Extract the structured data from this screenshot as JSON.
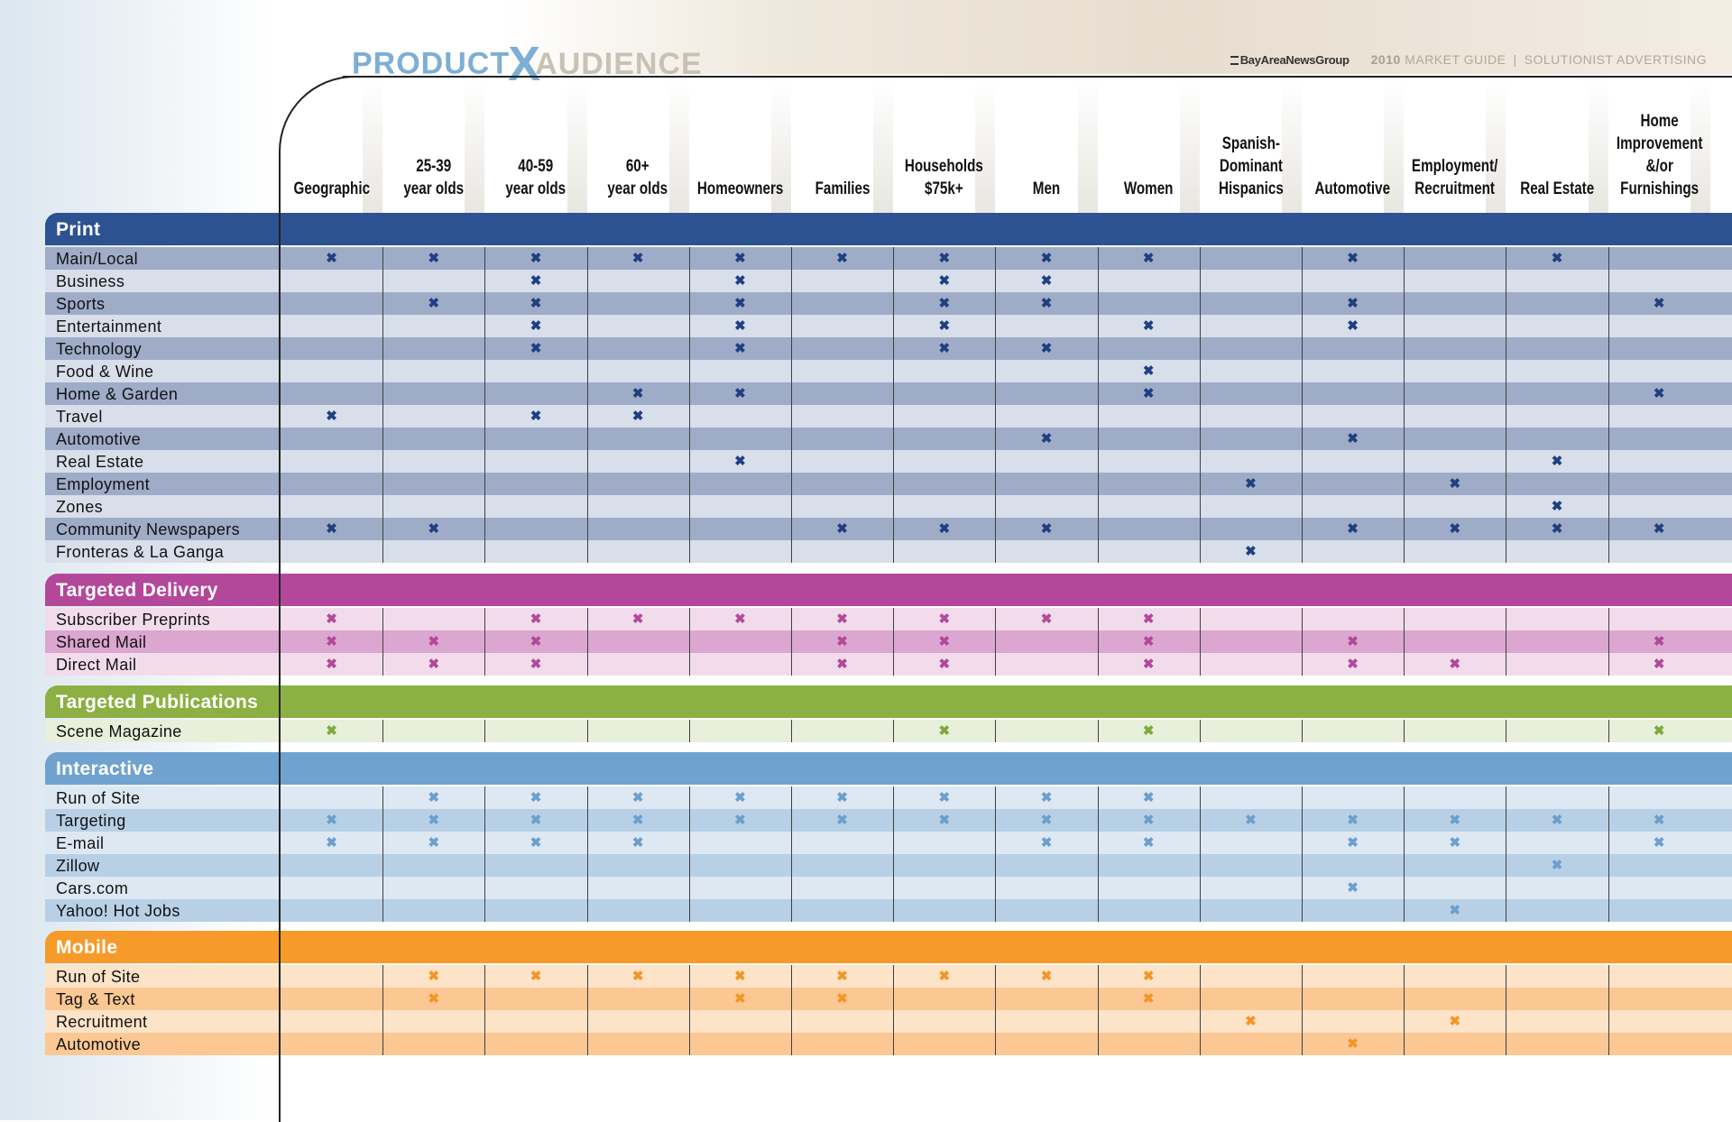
{
  "header": {
    "title_part1": "PRODUCT",
    "title_x": "X",
    "title_part2": "AUDIENCE",
    "brand": "BayAreaNewsGroup",
    "guide_year": "2010",
    "guide_label": "MARKET GUIDE",
    "separator": "|",
    "tagline": "SOLUTIONIST ADVERTISING"
  },
  "columns": [
    "Geographic",
    "25-39\nyear olds",
    "40-59\nyear olds",
    "60+\nyear olds",
    "Homeowners",
    "Families",
    "Households\n$75k+",
    "Men",
    "Women",
    "Spanish-\nDominant\nHispanics",
    "Automotive",
    "Employment/\nRecruitment",
    "Real Estate",
    "Home\nImprovement\n&/or\nFurnishings"
  ],
  "mark_glyph": "✖",
  "sections": [
    {
      "name": "Print",
      "color": "#2d5291",
      "row_colors": [
        "#9eacc8",
        "#d8dfea"
      ],
      "mark_color": "#1f3f80",
      "rows": [
        {
          "label": "Main/Local",
          "marks": [
            0,
            1,
            2,
            3,
            4,
            5,
            6,
            7,
            8,
            10,
            12
          ]
        },
        {
          "label": "Business",
          "marks": [
            2,
            4,
            6,
            7
          ]
        },
        {
          "label": "Sports",
          "marks": [
            1,
            2,
            4,
            6,
            7,
            10,
            13
          ]
        },
        {
          "label": "Entertainment",
          "marks": [
            2,
            4,
            6,
            8,
            10
          ]
        },
        {
          "label": "Technology",
          "marks": [
            2,
            4,
            6,
            7
          ]
        },
        {
          "label": "Food & Wine",
          "marks": [
            8
          ]
        },
        {
          "label": "Home & Garden",
          "marks": [
            3,
            4,
            8,
            13
          ]
        },
        {
          "label": "Travel",
          "marks": [
            0,
            2,
            3
          ]
        },
        {
          "label": "Automotive",
          "marks": [
            7,
            10
          ]
        },
        {
          "label": "Real Estate",
          "marks": [
            4,
            12
          ]
        },
        {
          "label": "Employment",
          "marks": [
            9,
            11
          ]
        },
        {
          "label": "Zones",
          "marks": [
            12
          ]
        },
        {
          "label": "Community Newspapers",
          "marks": [
            0,
            1,
            5,
            6,
            7,
            10,
            11,
            12,
            13
          ]
        },
        {
          "label": "Fronteras & La Ganga",
          "marks": [
            9
          ]
        }
      ]
    },
    {
      "name": "Targeted Delivery",
      "color": "#b3489b",
      "row_colors": [
        "#f2dcec",
        "#dba6cf"
      ],
      "mark_color": "#b3489b",
      "rows": [
        {
          "label": "Subscriber Preprints",
          "marks": [
            0,
            2,
            3,
            4,
            5,
            6,
            7,
            8
          ]
        },
        {
          "label": "Shared Mail",
          "marks": [
            0,
            1,
            2,
            5,
            6,
            8,
            10,
            13
          ]
        },
        {
          "label": "Direct Mail",
          "marks": [
            0,
            1,
            2,
            5,
            6,
            8,
            10,
            11,
            13
          ]
        }
      ]
    },
    {
      "name": "Targeted Publications",
      "color": "#8cb043",
      "row_colors": [
        "#e8efda"
      ],
      "mark_color": "#7fa83a",
      "rows": [
        {
          "label": "Scene Magazine",
          "marks": [
            0,
            6,
            8,
            13
          ]
        }
      ]
    },
    {
      "name": "Interactive",
      "color": "#6fa2cf",
      "row_colors": [
        "#dde8f2",
        "#b8d0e6"
      ],
      "mark_color": "#6b9fcc",
      "rows": [
        {
          "label": "Run of Site",
          "marks": [
            1,
            2,
            3,
            4,
            5,
            6,
            7,
            8
          ]
        },
        {
          "label": "Targeting",
          "marks": [
            0,
            1,
            2,
            3,
            4,
            5,
            6,
            7,
            8,
            9,
            10,
            11,
            12,
            13
          ]
        },
        {
          "label": "E-mail",
          "marks": [
            0,
            1,
            2,
            3,
            7,
            8,
            10,
            11,
            13
          ]
        },
        {
          "label": "Zillow",
          "marks": [
            12
          ]
        },
        {
          "label": "Cars.com",
          "marks": [
            10
          ]
        },
        {
          "label": "Yahoo! Hot Jobs",
          "marks": [
            11
          ]
        }
      ]
    },
    {
      "name": "Mobile",
      "color": "#f69b2a",
      "row_colors": [
        "#fde3c8",
        "#fbc894"
      ],
      "mark_color": "#f39626",
      "rows": [
        {
          "label": "Run of Site",
          "marks": [
            1,
            2,
            3,
            4,
            5,
            6,
            7,
            8
          ]
        },
        {
          "label": "Tag & Text",
          "marks": [
            1,
            4,
            5,
            8
          ]
        },
        {
          "label": "Recruitment",
          "marks": [
            9,
            11
          ]
        },
        {
          "label": "Automotive",
          "marks": [
            10
          ]
        }
      ]
    }
  ]
}
